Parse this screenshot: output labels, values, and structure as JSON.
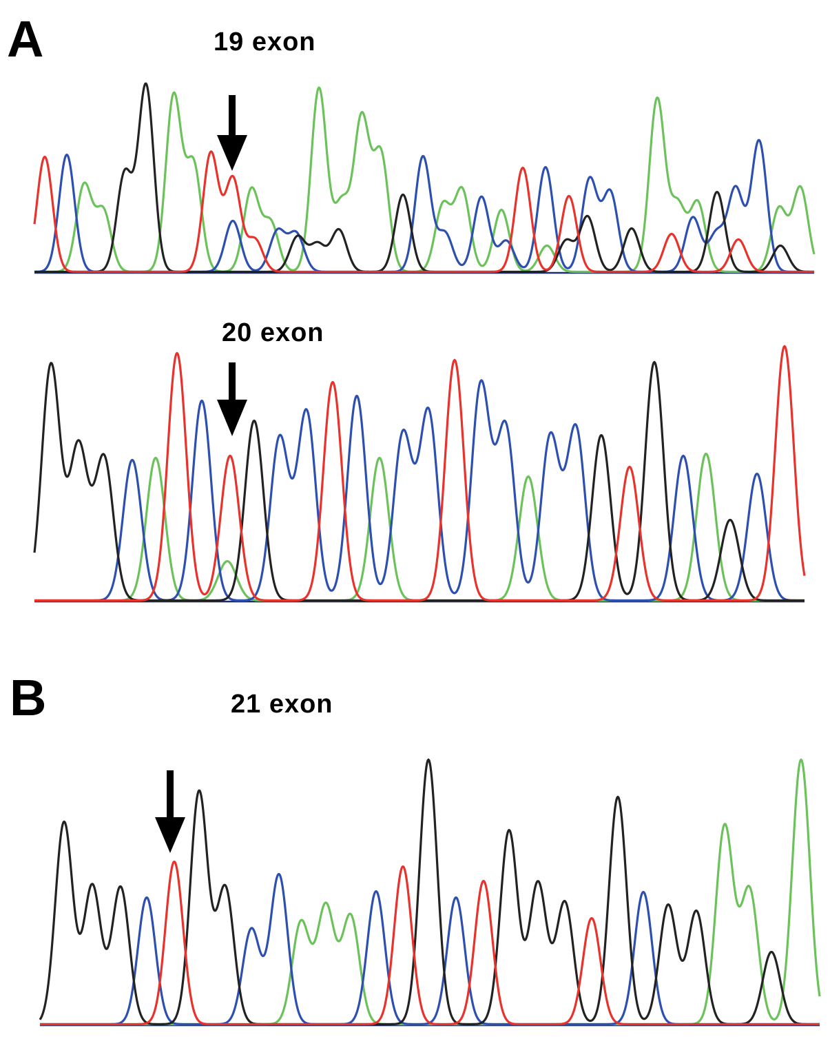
{
  "panels": [
    {
      "letter": "A",
      "title": "19 exon",
      "peaks": [
        {
          "pos": [
            65,
            229,
            "red",
            2
          ],
          "h": 0.62
        },
        {
          "pos": [
            97,
            226,
            "blue",
            2
          ]
        },
        {
          "pos": [
            122,
            271,
            "green",
            2
          ]
        },
        {
          "pos": [
            150,
            308,
            "green",
            2
          ]
        },
        {
          "pos": [
            181,
            254,
            "black",
            2
          ]
        },
        {
          "pos": [
            212,
            126,
            "black",
            2
          ]
        },
        {
          "pos": [
            252,
            142,
            "green",
            2
          ]
        },
        {
          "pos": [
            281,
            241,
            "green",
            2
          ]
        },
        {
          "pos": [
            306,
            224,
            "red",
            2
          ]
        },
        {
          "pos": [
            338,
            261,
            "red",
            2
          ]
        },
        {
          "pos": [
            338,
            322,
            "blue",
            2
          ]
        },
        {
          "pos": [
            365,
            277,
            "green",
            2
          ]
        },
        {
          "pos": [
            370,
            349,
            "red",
            2
          ]
        },
        {
          "pos": [
            393,
            325,
            "green",
            2
          ]
        },
        {
          "pos": [
            403,
            337,
            "blue",
            2
          ]
        },
        {
          "pos": [
            430,
            341,
            "blue",
            2
          ]
        },
        {
          "pos": [
            432,
            345,
            "black",
            2
          ]
        },
        {
          "pos": [
            461,
            356,
            "black",
            2
          ]
        },
        {
          "pos": [
            463,
            130,
            "green",
            2
          ]
        },
        {
          "pos": [
            492,
            335,
            "black",
            2
          ]
        },
        {
          "pos": [
            496,
            298,
            "green",
            2
          ]
        },
        {
          "pos": [
            525,
            176,
            "green",
            2
          ]
        },
        {
          "pos": [
            553,
            227,
            "green",
            2
          ]
        },
        {
          "pos": [
            585,
            284,
            "black",
            2
          ]
        },
        {
          "pos": [
            614,
            229,
            "blue",
            2
          ]
        },
        {
          "pos": [
            643,
            300,
            "green",
            2
          ]
        },
        {
          "pos": [
            646,
            340,
            "blue",
            2
          ]
        },
        {
          "pos": [
            671,
            278,
            "green",
            2
          ]
        },
        {
          "pos": [
            699,
            287,
            "blue",
            2
          ]
        },
        {
          "pos": [
            728,
            306,
            "green",
            2
          ]
        },
        {
          "pos": [
            735,
            351,
            "blue",
            2
          ]
        },
        {
          "pos": [
            759,
            245,
            "red",
            2
          ]
        },
        {
          "pos": [
            792,
            244,
            "blue",
            2
          ]
        },
        {
          "pos": [
            794,
            358,
            "green",
            2
          ]
        },
        {
          "pos": [
            822,
            351,
            "black",
            2
          ]
        },
        {
          "pos": [
            826,
            286,
            "red",
            2
          ]
        },
        {
          "pos": [
            856,
            262,
            "blue",
            2
          ]
        },
        {
          "pos": [
            853,
            316,
            "black",
            2
          ]
        },
        {
          "pos": [
            886,
            281,
            "blue",
            2
          ]
        },
        {
          "pos": [
            917,
            333,
            "black",
            2
          ]
        },
        {
          "pos": [
            954,
            146,
            "green",
            2
          ]
        },
        {
          "pos": [
            975,
            341,
            "red",
            2
          ]
        },
        {
          "pos": [
            984,
            301,
            "green",
            2
          ]
        },
        {
          "pos": [
            1006,
            317,
            "blue",
            2
          ]
        },
        {
          "pos": [
            1013,
            296,
            "green",
            2
          ]
        },
        {
          "pos": [
            1041,
            280,
            "black",
            2
          ]
        },
        {
          "pos": [
            1040,
            341,
            "blue",
            2
          ]
        },
        {
          "pos": [
            1068,
            276,
            "blue",
            2
          ]
        },
        {
          "pos": [
            1072,
            349,
            "red",
            2
          ]
        },
        {
          "pos": [
            1102,
            206,
            "blue",
            2
          ]
        },
        {
          "pos": [
            1131,
            304,
            "green",
            2
          ]
        },
        {
          "pos": [
            1133,
            358,
            "black",
            2
          ]
        },
        {
          "pos": [
            1162,
            274,
            "green",
            2
          ]
        }
      ]
    },
    {
      "letter": "",
      "title": "20 exon",
      "peaks": [
        {
          "pos": [
            74,
            531,
            "black",
            2
          ]
        },
        {
          "pos": [
            114,
            649,
            "black",
            2
          ]
        },
        {
          "pos": [
            151,
            666,
            "black",
            2
          ]
        },
        {
          "pos": [
            192,
            669,
            "blue",
            2
          ]
        },
        {
          "pos": [
            226,
            666,
            "green",
            2
          ]
        },
        {
          "pos": [
            257,
            514,
            "red",
            2
          ]
        },
        {
          "pos": [
            293,
            583,
            "blue",
            2
          ]
        },
        {
          "pos": [
            334,
            663,
            "red",
            2
          ]
        },
        {
          "pos": [
            330,
            816,
            "green",
            2
          ]
        },
        {
          "pos": [
            369,
            612,
            "black",
            2
          ]
        },
        {
          "pos": [
            406,
            637,
            "blue",
            2
          ]
        },
        {
          "pos": [
            445,
            599,
            "blue",
            2
          ]
        },
        {
          "pos": [
            483,
            556,
            "red",
            2
          ]
        },
        {
          "pos": [
            518,
            576,
            "blue",
            2
          ]
        },
        {
          "pos": [
            551,
            666,
            "green",
            2
          ]
        },
        {
          "pos": [
            585,
            632,
            "blue",
            2
          ]
        },
        {
          "pos": [
            622,
            599,
            "blue",
            2
          ]
        },
        {
          "pos": [
            660,
            524,
            "red",
            2
          ]
        },
        {
          "pos": [
            698,
            561,
            "blue",
            2
          ]
        },
        {
          "pos": [
            734,
            622,
            "blue",
            2
          ]
        },
        {
          "pos": [
            767,
            693,
            "green",
            2
          ]
        },
        {
          "pos": [
            799,
            635,
            "blue",
            2
          ]
        },
        {
          "pos": [
            836,
            623,
            "blue",
            2
          ]
        },
        {
          "pos": [
            873,
            633,
            "black",
            2
          ]
        },
        {
          "pos": [
            914,
            679,
            "red",
            2
          ]
        },
        {
          "pos": [
            950,
            527,
            "black",
            2
          ]
        },
        {
          "pos": [
            992,
            663,
            "blue",
            2
          ]
        },
        {
          "pos": [
            1025,
            660,
            "green",
            2
          ]
        },
        {
          "pos": [
            1060,
            756,
            "black",
            2
          ]
        },
        {
          "pos": [
            1099,
            689,
            "blue",
            2
          ]
        },
        {
          "pos": [
            1139,
            504,
            "red",
            2
          ]
        }
      ]
    },
    {
      "letter": "B",
      "title": "21 exon",
      "peaks": [
        {
          "pos": [
            93,
            1195,
            "black",
            2
          ]
        },
        {
          "pos": [
            134,
            1287,
            "black",
            2
          ]
        },
        {
          "pos": [
            175,
            1289,
            "black",
            2
          ]
        },
        {
          "pos": [
            213,
            1304,
            "blue",
            2
          ]
        },
        {
          "pos": [
            253,
            1252,
            "red",
            2
          ]
        },
        {
          "pos": [
            289,
            1151,
            "black",
            2
          ]
        },
        {
          "pos": [
            327,
            1290,
            "black",
            2
          ]
        },
        {
          "pos": [
            365,
            1350,
            "blue",
            2
          ]
        },
        {
          "pos": [
            405,
            1271,
            "blue",
            2
          ]
        },
        {
          "pos": [
            437,
            1340,
            "green",
            2
          ]
        },
        {
          "pos": [
            473,
            1317,
            "green",
            2
          ]
        },
        {
          "pos": [
            509,
            1331,
            "green",
            2
          ]
        },
        {
          "pos": [
            546,
            1295,
            "blue",
            2
          ]
        },
        {
          "pos": [
            585,
            1259,
            "red",
            2
          ]
        },
        {
          "pos": [
            622,
            1104,
            "black",
            2
          ]
        },
        {
          "pos": [
            662,
            1304,
            "blue",
            2
          ]
        },
        {
          "pos": [
            702,
            1280,
            "red",
            2
          ]
        },
        {
          "pos": [
            739,
            1207,
            "black",
            2
          ]
        },
        {
          "pos": [
            781,
            1283,
            "black",
            2
          ]
        },
        {
          "pos": [
            820,
            1311,
            "black",
            2
          ]
        },
        {
          "pos": [
            859,
            1334,
            "red",
            2
          ]
        },
        {
          "pos": [
            897,
            1158,
            "black",
            2
          ]
        },
        {
          "pos": [
            934,
            1296,
            "blue",
            2
          ]
        },
        {
          "pos": [
            970,
            1315,
            "black",
            2
          ]
        },
        {
          "pos": [
            1011,
            1324,
            "black",
            2
          ]
        },
        {
          "pos": [
            1052,
            1201,
            "green",
            2
          ]
        },
        {
          "pos": [
            1088,
            1293,
            "green",
            2
          ]
        },
        {
          "pos": [
            1120,
            1383,
            "black",
            2
          ]
        },
        {
          "pos": [
            1163,
            1104,
            "green",
            2
          ]
        }
      ]
    }
  ],
  "colors": {
    "red": "#e8322c",
    "blue": "#2c4fb0",
    "green": "#6cc25a",
    "black": "#222222"
  }
}
